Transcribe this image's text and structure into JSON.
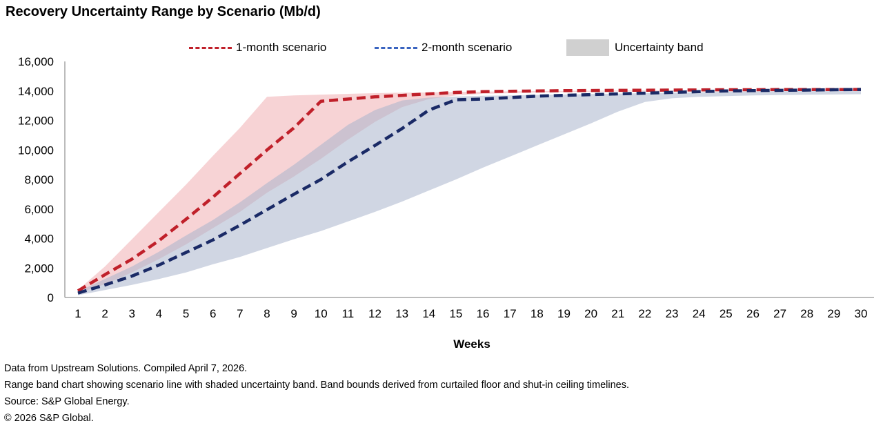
{
  "chart_data": {
    "type": "area",
    "title": "Recovery Uncertainty Range by Scenario (Mb/d)",
    "xlabel": "Weeks",
    "ylabel": "",
    "x": [
      1,
      2,
      3,
      4,
      5,
      6,
      7,
      8,
      9,
      10,
      11,
      12,
      13,
      14,
      15,
      16,
      17,
      18,
      19,
      20,
      21,
      22,
      23,
      24,
      25,
      26,
      27,
      28,
      29,
      30
    ],
    "ylim": [
      0,
      16000
    ],
    "yticks": [
      0,
      2000,
      4000,
      6000,
      8000,
      10000,
      12000,
      14000,
      16000
    ],
    "ytick_labels": [
      "0",
      "2,000",
      "4,000",
      "6,000",
      "8,000",
      "10,000",
      "12,000",
      "14,000",
      "16,000"
    ],
    "grid": false,
    "legend_position": "top",
    "legend": [
      "1-month scenario",
      "2-month scenario",
      "Uncertainty band"
    ],
    "series": [
      {
        "name": "1-month scenario",
        "color": "#c0202a",
        "values": [
          450,
          1550,
          2600,
          3850,
          5300,
          6800,
          8400,
          10000,
          11500,
          13300,
          13450,
          13600,
          13700,
          13800,
          13900,
          13950,
          13980,
          14000,
          14020,
          14030,
          14040,
          14050,
          14060,
          14070,
          14080,
          14080,
          14090,
          14090,
          14090,
          14100
        ]
      },
      {
        "name": "2-month scenario",
        "color": "#1a2a66",
        "values": [
          300,
          850,
          1450,
          2200,
          3050,
          3900,
          4900,
          5950,
          7000,
          8000,
          9200,
          10300,
          11450,
          12700,
          13400,
          13450,
          13550,
          13650,
          13700,
          13750,
          13800,
          13850,
          13900,
          13950,
          14000,
          14020,
          14040,
          14060,
          14080,
          14100
        ]
      }
    ],
    "bands": [
      {
        "name": "1-month band",
        "color": "#f2b8bb",
        "lower": [
          300,
          900,
          1700,
          2600,
          3600,
          4700,
          5800,
          7100,
          8200,
          9400,
          10700,
          11900,
          12900,
          13450,
          13700,
          13800,
          13850,
          13900,
          13930,
          13950,
          13970,
          13980,
          14000,
          14010,
          14020,
          14030,
          14040,
          14050,
          14060,
          14070
        ],
        "upper": [
          500,
          2100,
          3950,
          5800,
          7650,
          9600,
          11500,
          13600,
          13700,
          13750,
          13800,
          13850,
          13880,
          13900,
          13930,
          13950,
          13970,
          13990,
          14000,
          14010,
          14020,
          14030,
          14040,
          14050,
          14060,
          14070,
          14080,
          14090,
          14100,
          14110
        ]
      },
      {
        "name": "2-month band",
        "color": "#a9b4cc",
        "lower": [
          150,
          500,
          850,
          1250,
          1700,
          2250,
          2750,
          3350,
          3950,
          4500,
          5150,
          5800,
          6500,
          7250,
          8000,
          8800,
          9550,
          10300,
          11050,
          11800,
          12600,
          13250,
          13500,
          13600,
          13650,
          13700,
          13720,
          13740,
          13760,
          13780
        ],
        "upper": [
          400,
          1250,
          2100,
          3100,
          4200,
          5250,
          6450,
          7750,
          9000,
          10350,
          11700,
          12700,
          13350,
          13550,
          13620,
          13670,
          13700,
          13730,
          13760,
          13790,
          13820,
          13850,
          13880,
          13910,
          13940,
          13960,
          13980,
          14000,
          14020,
          14040
        ]
      }
    ]
  },
  "footer": {
    "line1": "Data from Upstream Solutions. Compiled April 7, 2026.",
    "line2": "Range band chart showing scenario line with shaded uncertainty band. Band bounds derived from curtailed floor and shut-in ceiling timelines.",
    "line3": "Source: S&P Global Energy.",
    "line4": "© 2026 S&P Global."
  }
}
